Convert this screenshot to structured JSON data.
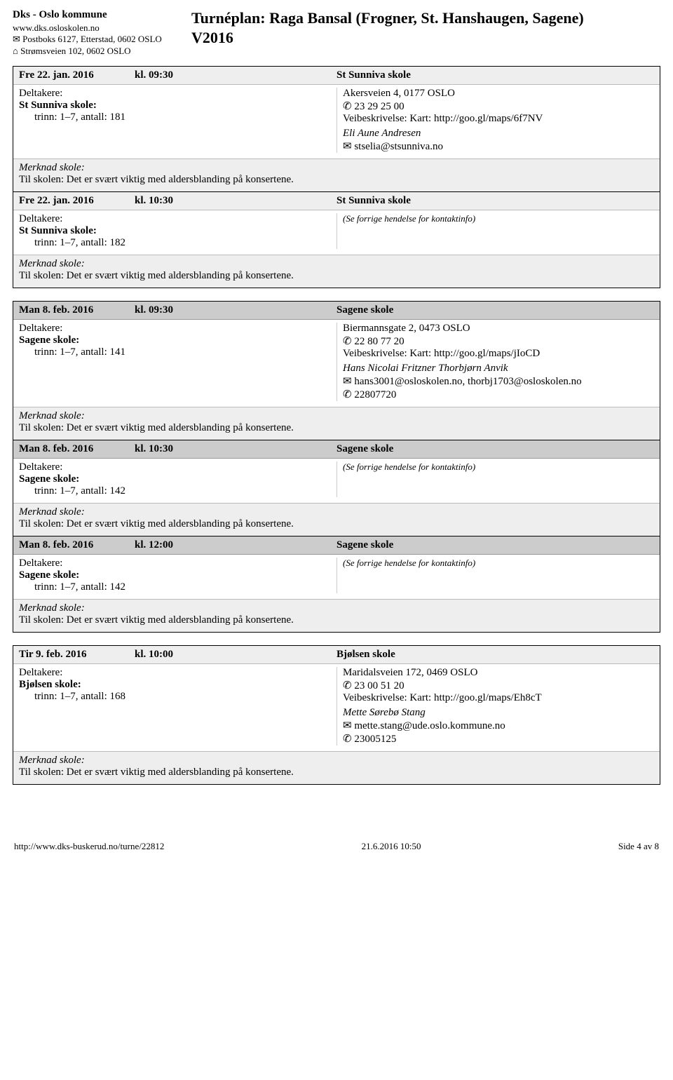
{
  "header": {
    "org_name": "Dks - Oslo kommune",
    "org_url": "www.dks.osloskolen.no",
    "org_postbox": "Postboks 6127, Etterstad, 0602 OSLO",
    "org_street": "Strømsveien 102, 0602 OSLO",
    "plan_title_line1": "Turnéplan: Raga Bansal (Frogner, St. Hanshaugen, Sagene)",
    "plan_title_line2": "V2016",
    "mail_icon": "✉",
    "home_icon": "⌂"
  },
  "labels": {
    "participants": "Deltakere:",
    "time_prefix": "kl.",
    "note_label": "Merknad skole:",
    "see_prev": "(Se forrige hendelse for kontaktinfo)",
    "phone_icon": "✆",
    "mail_icon": "✉"
  },
  "note_text": "Til skolen: Det er svært viktig med aldersblanding på konsertene.",
  "groups": [
    {
      "header_style": "hdr-light",
      "events": [
        {
          "date": "Fre 22. jan. 2016",
          "time": "09:30",
          "venue": "St Sunniva skole",
          "school": "St Sunniva skole:",
          "grades": "trinn: 1–7, antall: 181",
          "contact": {
            "address": "Akersveien 4, 0177 OSLO",
            "phone": "23 29 25 00",
            "directions": "Veibeskrivelse: Kart: http://goo.gl/maps/6f7NV",
            "contact_name": "Eli Aune Andresen",
            "contact_email": "stselia@stsunniva.no",
            "contact_phone": ""
          }
        },
        {
          "date": "Fre 22. jan. 2016",
          "time": "10:30",
          "venue": "St Sunniva skole",
          "school": "St Sunniva skole:",
          "grades": "trinn: 1–7, antall: 182",
          "see_prev": true
        }
      ]
    },
    {
      "header_style": "hdr-dark",
      "events": [
        {
          "date": "Man 8. feb. 2016",
          "time": "09:30",
          "venue": "Sagene skole",
          "school": "Sagene skole:",
          "grades": "trinn: 1–7, antall: 141",
          "contact": {
            "address": "Biermannsgate 2, 0473 OSLO",
            "phone": "22 80 77 20",
            "directions": "Veibeskrivelse: Kart: http://goo.gl/maps/jIoCD",
            "contact_name": "Hans Nicolai Fritzner Thorbjørn Anvik",
            "contact_email": "hans3001@osloskolen.no, thorbj1703@osloskolen.no",
            "contact_phone": "22807720"
          }
        },
        {
          "date": "Man 8. feb. 2016",
          "time": "10:30",
          "venue": "Sagene skole",
          "school": "Sagene skole:",
          "grades": "trinn: 1–7, antall: 142",
          "see_prev": true
        },
        {
          "date": "Man 8. feb. 2016",
          "time": "12:00",
          "venue": "Sagene skole",
          "school": "Sagene skole:",
          "grades": "trinn: 1–7, antall: 142",
          "see_prev": true
        }
      ]
    },
    {
      "header_style": "hdr-light",
      "events": [
        {
          "date": "Tir 9. feb. 2016",
          "time": "10:00",
          "venue": "Bjølsen skole",
          "school": "Bjølsen skole:",
          "grades": "trinn: 1–7, antall: 168",
          "contact": {
            "address": "Maridalsveien 172, 0469 OSLO",
            "phone": "23 00 51 20",
            "directions": "Veibeskrivelse: Kart: http://goo.gl/maps/Eh8cT",
            "contact_name": "Mette Sørebø Stang",
            "contact_email": "mette.stang@ude.oslo.kommune.no",
            "contact_phone": "23005125"
          }
        }
      ]
    }
  ],
  "footer": {
    "url": "http://www.dks-buskerud.no/turne/22812",
    "timestamp": "21.6.2016 10:50",
    "page": "Side 4 av 8"
  }
}
